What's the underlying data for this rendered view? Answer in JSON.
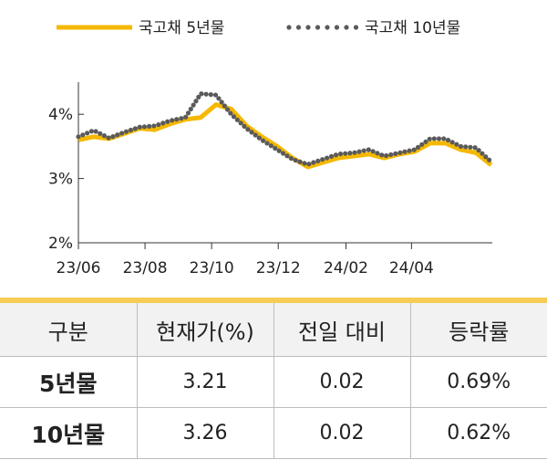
{
  "chart_data": {
    "type": "line",
    "x_ticks": [
      "23/06",
      "23/08",
      "23/10",
      "23/12",
      "24/02",
      "24/04"
    ],
    "y_ticks": [
      "2%",
      "3%",
      "4%"
    ],
    "ylim": [
      2,
      4.5
    ],
    "x_range": [
      "2023-06-01",
      "2024-06-14"
    ],
    "legend_position": "top",
    "grid": false,
    "series": [
      {
        "name": "국고채 5년물",
        "style": "solid",
        "color": "#f5b800",
        "x": [
          "2023-06-01",
          "2023-06-15",
          "2023-06-29",
          "2023-07-13",
          "2023-07-27",
          "2023-08-10",
          "2023-08-24",
          "2023-09-07",
          "2023-09-21",
          "2023-10-05",
          "2023-10-19",
          "2023-11-02",
          "2023-11-16",
          "2023-11-30",
          "2023-12-14",
          "2023-12-28",
          "2024-01-11",
          "2024-01-25",
          "2024-02-08",
          "2024-02-22",
          "2024-03-07",
          "2024-03-21",
          "2024-04-04",
          "2024-04-18",
          "2024-05-02",
          "2024-05-16",
          "2024-05-30",
          "2024-06-13"
        ],
        "values": [
          3.6,
          3.65,
          3.62,
          3.7,
          3.78,
          3.76,
          3.85,
          3.92,
          3.95,
          4.15,
          4.08,
          3.82,
          3.65,
          3.5,
          3.32,
          3.18,
          3.25,
          3.32,
          3.35,
          3.38,
          3.32,
          3.38,
          3.42,
          3.55,
          3.55,
          3.45,
          3.4,
          3.21
        ]
      },
      {
        "name": "국고채 10년물",
        "style": "dotted",
        "color": "#5a5a5a",
        "x": [
          "2023-06-01",
          "2023-06-15",
          "2023-06-29",
          "2023-07-13",
          "2023-07-27",
          "2023-08-10",
          "2023-08-24",
          "2023-09-07",
          "2023-09-21",
          "2023-10-05",
          "2023-10-19",
          "2023-11-02",
          "2023-11-16",
          "2023-11-30",
          "2023-12-14",
          "2023-12-28",
          "2024-01-11",
          "2024-01-25",
          "2024-02-08",
          "2024-02-22",
          "2024-03-07",
          "2024-03-21",
          "2024-04-04",
          "2024-04-18",
          "2024-05-02",
          "2024-05-16",
          "2024-05-30",
          "2024-06-13"
        ],
        "values": [
          3.65,
          3.75,
          3.63,
          3.72,
          3.8,
          3.82,
          3.9,
          3.95,
          4.32,
          4.3,
          4.0,
          3.78,
          3.6,
          3.45,
          3.3,
          3.22,
          3.3,
          3.38,
          3.4,
          3.45,
          3.35,
          3.4,
          3.45,
          3.62,
          3.62,
          3.5,
          3.48,
          3.26
        ]
      }
    ]
  },
  "table": {
    "headers": [
      "구분",
      "현재가(%)",
      "전일 대비",
      "등락률"
    ],
    "rows": [
      {
        "label": "5년물",
        "price": "3.21",
        "change": "0.02",
        "rate": "0.69%"
      },
      {
        "label": "10년물",
        "price": "3.26",
        "change": "0.02",
        "rate": "0.62%"
      }
    ]
  }
}
